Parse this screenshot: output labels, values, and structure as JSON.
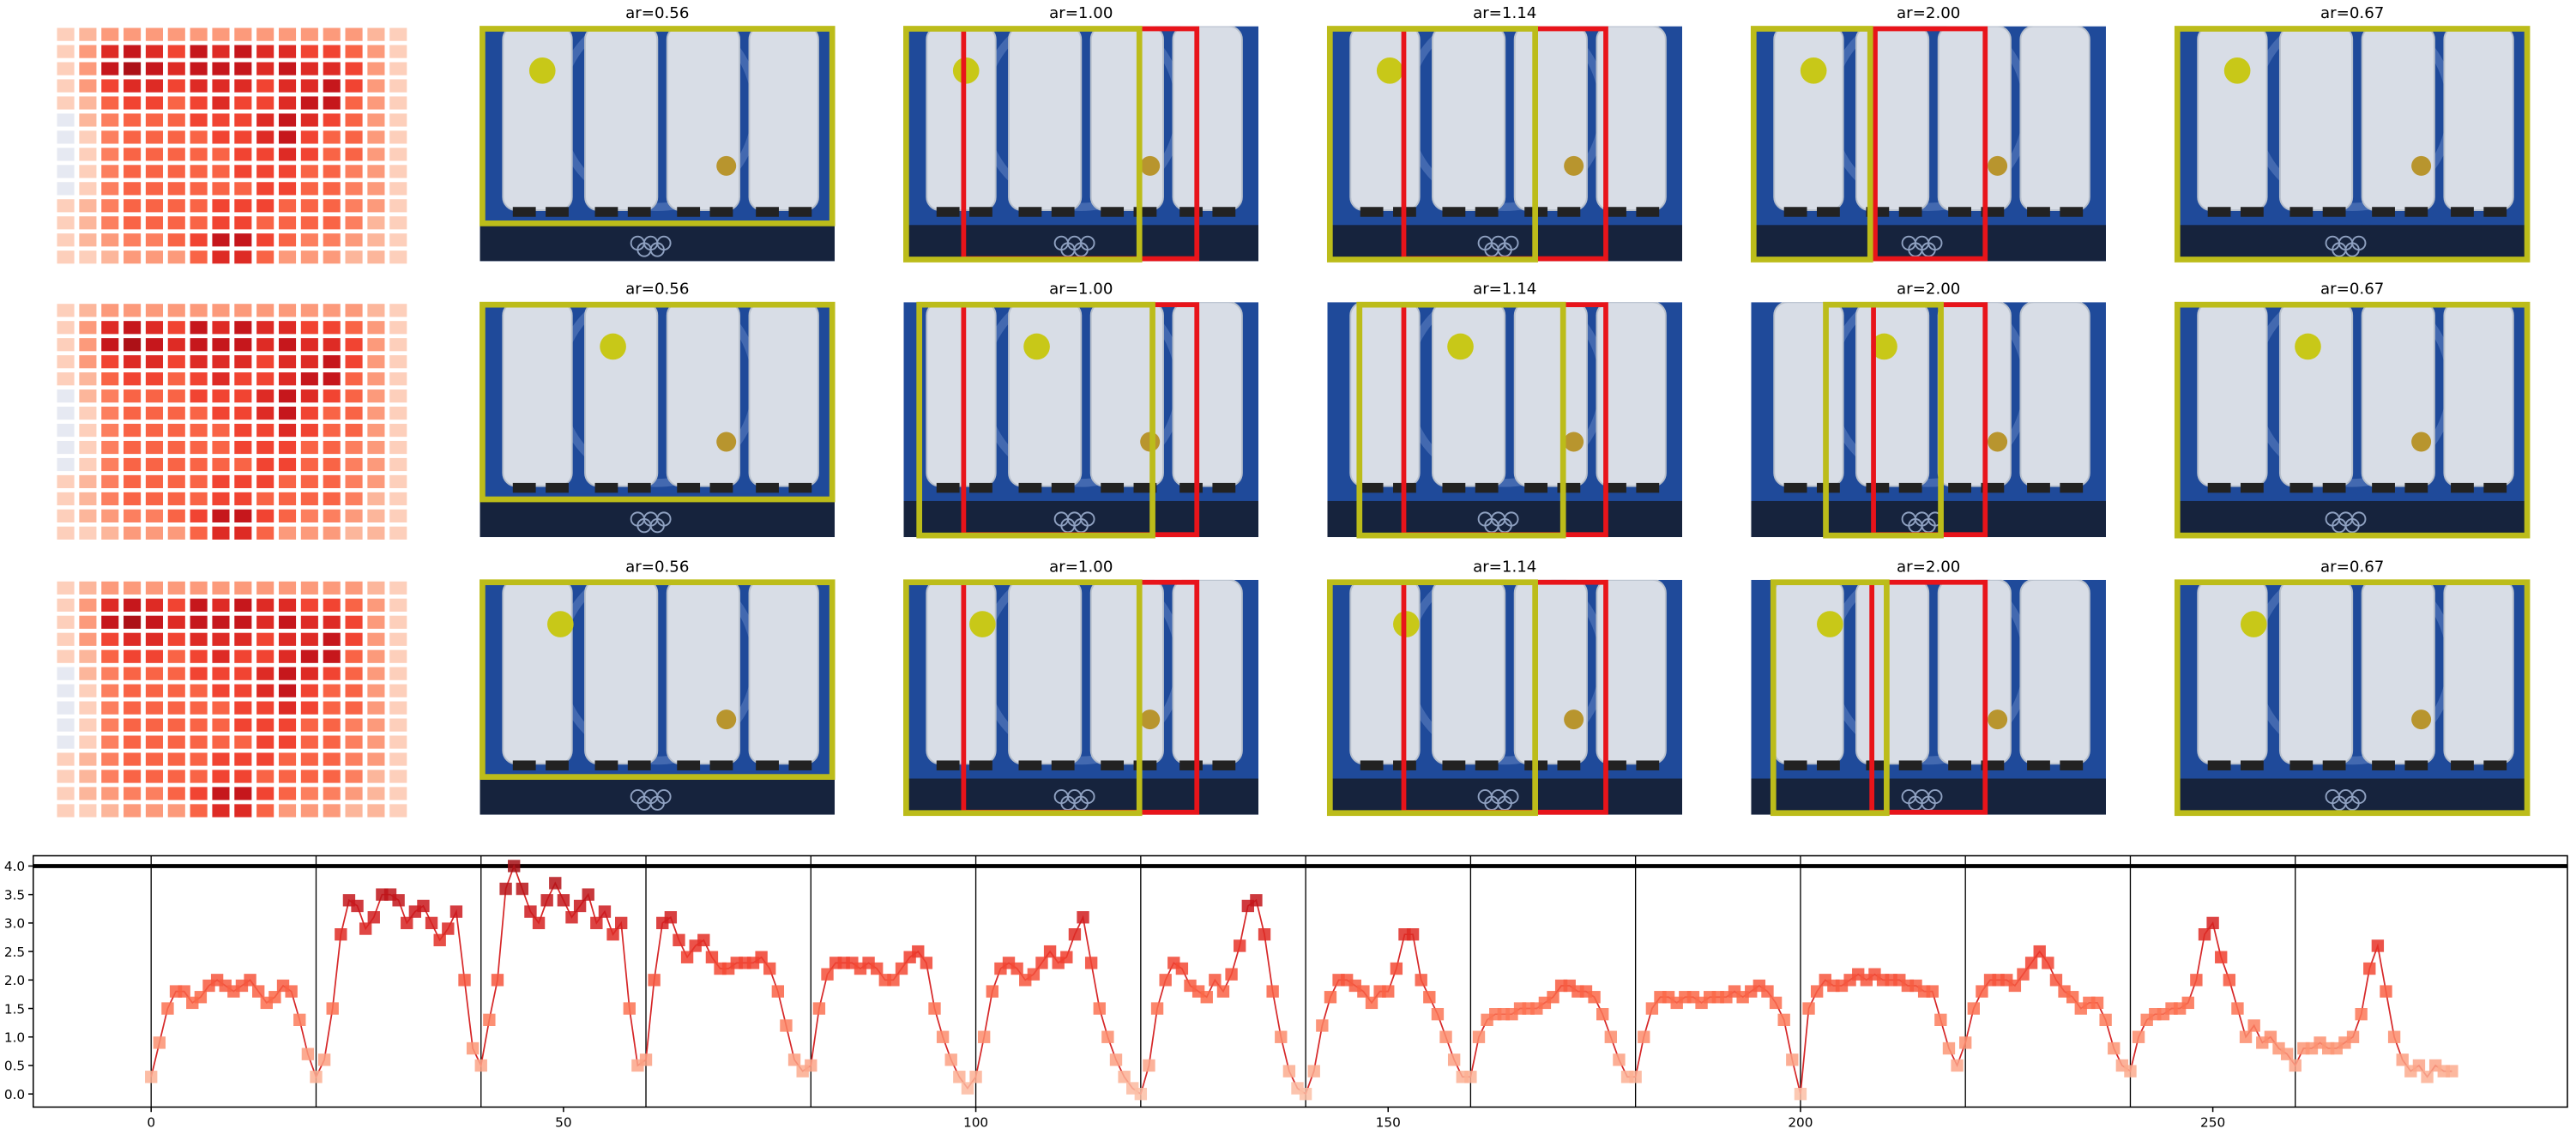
{
  "panels": {
    "titles": [
      [
        "ar=0.56",
        "ar=1.00",
        "ar=1.14",
        "ar=2.00",
        "ar=0.67"
      ],
      [
        "ar=0.56",
        "ar=1.00",
        "ar=1.14",
        "ar=2.00",
        "ar=0.67"
      ],
      [
        "ar=0.56",
        "ar=1.00",
        "ar=1.14",
        "ar=2.00",
        "ar=0.67"
      ]
    ],
    "heatmap": [
      [
        1,
        2,
        3,
        3,
        3,
        3,
        3,
        3,
        3,
        3,
        3,
        3,
        3,
        3,
        2,
        1
      ],
      [
        1,
        3,
        7,
        8,
        7,
        6,
        8,
        7,
        8,
        7,
        7,
        6,
        6,
        5,
        3,
        1
      ],
      [
        1,
        3,
        8,
        9,
        8,
        7,
        8,
        8,
        8,
        7,
        8,
        7,
        7,
        6,
        3,
        1
      ],
      [
        1,
        3,
        6,
        7,
        7,
        6,
        7,
        7,
        7,
        6,
        7,
        7,
        8,
        6,
        3,
        1
      ],
      [
        1,
        2,
        5,
        6,
        6,
        5,
        6,
        7,
        6,
        6,
        7,
        8,
        8,
        5,
        3,
        1
      ],
      [
        0,
        2,
        4,
        5,
        5,
        5,
        6,
        6,
        6,
        7,
        8,
        7,
        6,
        5,
        3,
        1
      ],
      [
        0,
        1,
        4,
        5,
        5,
        5,
        5,
        6,
        6,
        7,
        8,
        6,
        5,
        5,
        3,
        1
      ],
      [
        0,
        1,
        4,
        5,
        5,
        5,
        5,
        5,
        6,
        6,
        7,
        6,
        5,
        5,
        3,
        1
      ],
      [
        0,
        1,
        4,
        5,
        5,
        5,
        5,
        5,
        6,
        6,
        6,
        5,
        5,
        4,
        3,
        1
      ],
      [
        0,
        1,
        4,
        5,
        5,
        5,
        5,
        5,
        5,
        6,
        6,
        5,
        5,
        4,
        3,
        1
      ],
      [
        1,
        2,
        4,
        5,
        5,
        5,
        5,
        6,
        6,
        6,
        5,
        5,
        5,
        4,
        3,
        1
      ],
      [
        1,
        2,
        4,
        5,
        5,
        5,
        5,
        6,
        6,
        5,
        5,
        5,
        5,
        4,
        2,
        1
      ],
      [
        1,
        2,
        3,
        4,
        4,
        5,
        6,
        8,
        8,
        6,
        5,
        4,
        4,
        3,
        2,
        1
      ],
      [
        1,
        1,
        2,
        3,
        3,
        3,
        5,
        7,
        7,
        5,
        3,
        3,
        3,
        2,
        2,
        1
      ]
    ],
    "colormap": "Reds"
  },
  "chart_data": {
    "type": "line",
    "colormap": "Reds",
    "line_color": "#d62728",
    "x": [
      0,
      1,
      2,
      3,
      4,
      5,
      6,
      7,
      8,
      9,
      10,
      11,
      12,
      13,
      14,
      15,
      16,
      17,
      18,
      19,
      20,
      21,
      22,
      23,
      24,
      25,
      26,
      27,
      28,
      29,
      30,
      31,
      32,
      33,
      34,
      35,
      36,
      37,
      38,
      39,
      40,
      41,
      42,
      43,
      44,
      45,
      46,
      47,
      48,
      49,
      50,
      51,
      52,
      53,
      54,
      55,
      56,
      57,
      58,
      59,
      60,
      61,
      62,
      63,
      64,
      65,
      66,
      67,
      68,
      69,
      70,
      71,
      72,
      73,
      74,
      75,
      76,
      77,
      78,
      79,
      80,
      81,
      82,
      83,
      84,
      85,
      86,
      87,
      88,
      89,
      90,
      91,
      92,
      93,
      94,
      95,
      96,
      97,
      98,
      99,
      100,
      101,
      102,
      103,
      104,
      105,
      106,
      107,
      108,
      109,
      110,
      111,
      112,
      113,
      114,
      115,
      116,
      117,
      118,
      119,
      120,
      121,
      122,
      123,
      124,
      125,
      126,
      127,
      128,
      129,
      130,
      131,
      132,
      133,
      134,
      135,
      136,
      137,
      138,
      139,
      140,
      141,
      142,
      143,
      144,
      145,
      146,
      147,
      148,
      149,
      150,
      151,
      152,
      153,
      154,
      155,
      156,
      157,
      158,
      159,
      160,
      161,
      162,
      163,
      164,
      165,
      166,
      167,
      168,
      169,
      170,
      171,
      172,
      173,
      174,
      175,
      176,
      177,
      178,
      179,
      180,
      181,
      182,
      183,
      184,
      185,
      186,
      187,
      188,
      189,
      190,
      191,
      192,
      193,
      194,
      195,
      196,
      197,
      198,
      199,
      200,
      201,
      202,
      203,
      204,
      205,
      206,
      207,
      208,
      209,
      210,
      211,
      212,
      213,
      214,
      215,
      216,
      217,
      218,
      219,
      220,
      221,
      222,
      223,
      224,
      225,
      226,
      227,
      228,
      229,
      230,
      231,
      232,
      233,
      234,
      235,
      236,
      237,
      238,
      239,
      240,
      241,
      242,
      243,
      244,
      245,
      246,
      247,
      248,
      249,
      250,
      251,
      252,
      253,
      254,
      255,
      256,
      257,
      258,
      259,
      260,
      261,
      262,
      263,
      264,
      265,
      266,
      267,
      268,
      269,
      270,
      271,
      272,
      273,
      274,
      275,
      276,
      277,
      278,
      279
    ],
    "values": [
      0.3,
      0.9,
      1.5,
      1.8,
      1.8,
      1.6,
      1.7,
      1.9,
      2.0,
      1.9,
      1.8,
      1.9,
      2.0,
      1.8,
      1.6,
      1.7,
      1.9,
      1.8,
      1.3,
      0.7,
      0.3,
      0.6,
      1.5,
      2.8,
      3.4,
      3.3,
      2.9,
      3.1,
      3.5,
      3.5,
      3.4,
      3.0,
      3.2,
      3.3,
      3.0,
      2.7,
      2.9,
      3.2,
      2.0,
      0.8,
      0.5,
      1.3,
      2.0,
      3.6,
      4.0,
      3.6,
      3.2,
      3.0,
      3.4,
      3.7,
      3.4,
      3.1,
      3.3,
      3.5,
      3.0,
      3.2,
      2.8,
      3.0,
      1.5,
      0.5,
      0.6,
      2.0,
      3.0,
      3.1,
      2.7,
      2.4,
      2.6,
      2.7,
      2.4,
      2.2,
      2.2,
      2.3,
      2.3,
      2.3,
      2.4,
      2.2,
      1.8,
      1.2,
      0.6,
      0.4,
      0.5,
      1.5,
      2.1,
      2.3,
      2.3,
      2.3,
      2.2,
      2.3,
      2.2,
      2.0,
      2.0,
      2.2,
      2.4,
      2.5,
      2.3,
      1.5,
      1.0,
      0.6,
      0.3,
      0.1,
      0.3,
      1.0,
      1.8,
      2.2,
      2.3,
      2.2,
      2.0,
      2.1,
      2.3,
      2.5,
      2.3,
      2.4,
      2.8,
      3.1,
      2.3,
      1.5,
      1.0,
      0.6,
      0.3,
      0.1,
      0.0,
      0.5,
      1.5,
      2.0,
      2.3,
      2.2,
      1.9,
      1.8,
      1.7,
      2.0,
      1.8,
      2.1,
      2.6,
      3.3,
      3.4,
      2.8,
      1.8,
      1.0,
      0.4,
      0.1,
      0.0,
      0.4,
      1.2,
      1.7,
      2.0,
      2.0,
      1.9,
      1.8,
      1.6,
      1.8,
      1.8,
      2.2,
      2.8,
      2.8,
      2.0,
      1.7,
      1.4,
      1.0,
      0.6,
      0.3,
      0.3,
      1.0,
      1.3,
      1.4,
      1.4,
      1.4,
      1.5,
      1.5,
      1.5,
      1.6,
      1.7,
      1.9,
      1.9,
      1.8,
      1.8,
      1.7,
      1.4,
      1.0,
      0.6,
      0.3,
      0.3,
      1.0,
      1.5,
      1.7,
      1.7,
      1.6,
      1.7,
      1.7,
      1.6,
      1.7,
      1.7,
      1.7,
      1.8,
      1.7,
      1.8,
      1.9,
      1.8,
      1.6,
      1.3,
      0.6,
      0.0,
      1.5,
      1.8,
      2.0,
      1.9,
      1.9,
      2.0,
      2.1,
      2.0,
      2.1,
      2.0,
      2.0,
      2.0,
      1.9,
      1.9,
      1.8,
      1.8,
      1.3,
      0.8,
      0.5,
      0.9,
      1.5,
      1.8,
      2.0,
      2.0,
      2.0,
      1.9,
      2.1,
      2.3,
      2.5,
      2.3,
      2.0,
      1.8,
      1.7,
      1.5,
      1.6,
      1.6,
      1.3,
      0.8,
      0.5,
      0.4,
      1.0,
      1.3,
      1.4,
      1.4,
      1.5,
      1.5,
      1.6,
      2.0,
      2.8,
      3.0,
      2.4,
      2.0,
      1.5,
      1.0,
      1.2,
      0.9,
      1.0,
      0.8,
      0.7,
      0.5,
      0.8,
      0.8,
      0.9,
      0.8,
      0.8,
      0.9,
      1.0,
      1.4,
      2.2,
      2.6,
      1.8,
      1.0,
      0.6,
      0.4,
      0.5,
      0.3,
      0.5,
      0.4,
      0.4
    ],
    "xlim": [
      -14.3,
      293
    ],
    "ylim": [
      -0.23,
      4.18
    ],
    "xticks": [
      0,
      50,
      100,
      150,
      200,
      250
    ],
    "yticks": [
      {
        "value": 0,
        "label": "0.0"
      },
      0.5,
      {
        "value": 1,
        "label": "1.0"
      },
      1.5,
      {
        "value": 2,
        "label": "2.0"
      },
      2.5,
      {
        "value": 3,
        "label": "3.0"
      },
      3.5,
      {
        "value": 4,
        "label": "4.0"
      }
    ],
    "vlines": [
      0,
      20,
      40,
      60,
      80,
      100,
      120,
      140,
      160,
      180,
      200,
      220,
      240,
      260
    ],
    "hlines": [
      4
    ]
  }
}
